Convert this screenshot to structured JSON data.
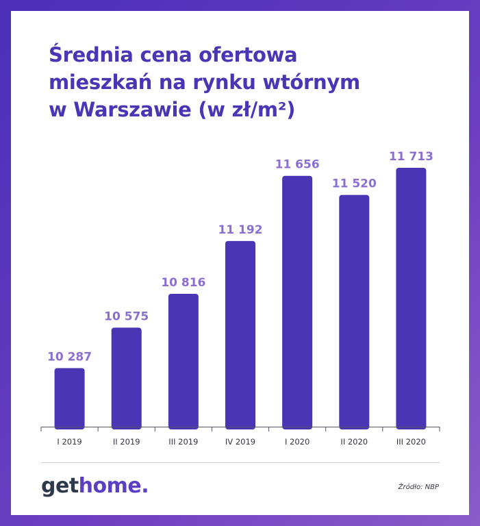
{
  "title_lines": [
    "Średnia cena ofertowa",
    "mieszkań na rynku wtórnym",
    "w Warszawie (w zł/m²)"
  ],
  "chart_data": {
    "type": "bar",
    "title": "Średnia cena ofertowa mieszkań na rynku wtórnym w Warszawie (w zł/m²)",
    "categories": [
      "I 2019",
      "II 2019",
      "III 2019",
      "IV 2019",
      "I 2020",
      "II 2020",
      "III 2020"
    ],
    "values": [
      10287,
      10575,
      10816,
      11192,
      11656,
      11520,
      11713
    ],
    "value_labels": [
      "10 287",
      "10 575",
      "10 816",
      "11 192",
      "11 656",
      "11 520",
      "11 713"
    ],
    "xlabel": "",
    "ylabel": "",
    "ylim": [
      9870,
      11713
    ],
    "grid": false,
    "legend": "none",
    "bar_color": "#4a35b5",
    "label_color": "#8a6fd0"
  },
  "footer": {
    "logo_get": "get",
    "logo_home": "home.",
    "source": "Źródło: NBP"
  },
  "colors": {
    "frame": "#5a3fc4",
    "title": "#4a35b5",
    "logo_dark": "#2e3a4c",
    "logo_accent": "#5a3fc4"
  }
}
